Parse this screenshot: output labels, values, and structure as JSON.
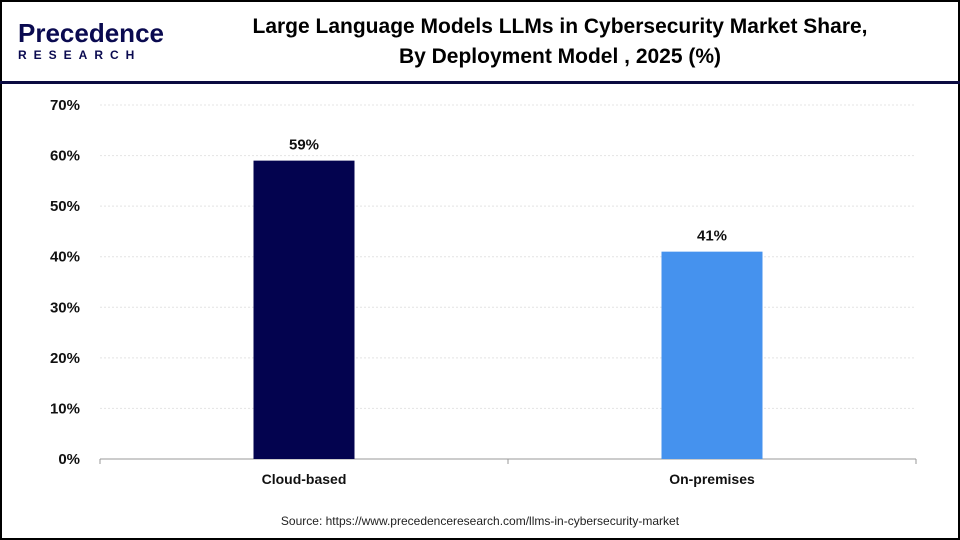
{
  "logo": {
    "text_top": "Precedence",
    "text_bottom": "RESEARCH"
  },
  "title_line1": "Large Language Models LLMs in Cybersecurity Market Share,",
  "title_line2": "By Deployment Model , 2025 (%)",
  "source": "Source: https://www.precedenceresearch.com/llms-in-cybersecurity-market",
  "chart_data": {
    "type": "bar",
    "title": "Large Language Models LLMs in Cybersecurity Market Share, By Deployment Model , 2025 (%)",
    "categories": [
      "Cloud-based",
      "On-premises"
    ],
    "values": [
      59,
      41
    ],
    "data_labels": [
      "59%",
      "41%"
    ],
    "colors": [
      "#03034f",
      "#4592ee"
    ],
    "ylim": [
      0,
      70
    ],
    "yticks": [
      "0%",
      "10%",
      "20%",
      "30%",
      "40%",
      "50%",
      "60%",
      "70%"
    ],
    "xlabel": "",
    "ylabel": "",
    "grid": true
  }
}
